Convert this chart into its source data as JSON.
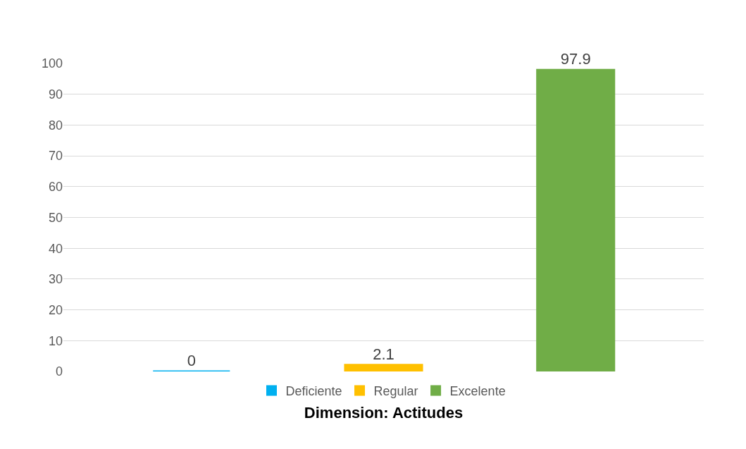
{
  "chart_data": {
    "type": "bar",
    "xlabel": "Dimension: Actitudes",
    "categories": [
      null
    ],
    "series": [
      {
        "name": "Deficiente",
        "color": "#00b0f0",
        "values": [
          0
        ]
      },
      {
        "name": "Regular",
        "color": "#ffc000",
        "values": [
          2.1
        ]
      },
      {
        "name": "Excelente",
        "color": "#70ad47",
        "values": [
          97.9
        ]
      }
    ],
    "ylim": [
      0,
      100
    ],
    "yticks": [
      0,
      10,
      20,
      30,
      40,
      50,
      60,
      70,
      80,
      90,
      100
    ],
    "grid": "y",
    "legend": "bottom",
    "data_labels": true
  }
}
